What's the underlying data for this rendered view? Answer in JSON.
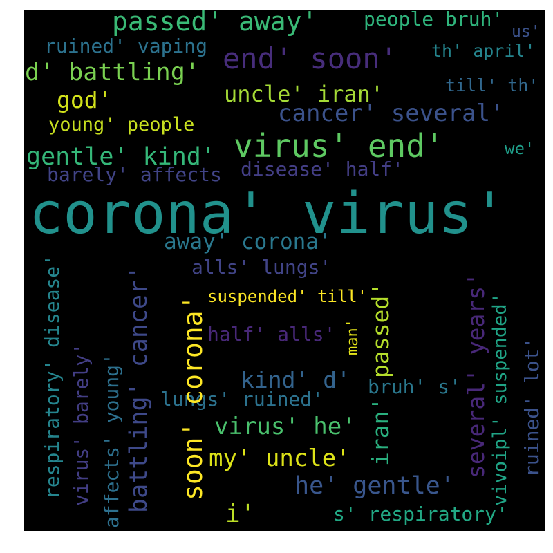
{
  "words": [
    {
      "text": "corona' virus'",
      "color": "#21918c"
    },
    {
      "text": "virus' end'",
      "color": "#5ec962"
    },
    {
      "text": "end' soon'",
      "color": "#472d7b"
    },
    {
      "text": "passed' away'",
      "color": "#3aba76"
    },
    {
      "text": "d' battling'",
      "color": "#7ad151"
    },
    {
      "text": "uncle' iran'",
      "color": "#a5db36"
    },
    {
      "text": "cancer' several'",
      "color": "#3b528b"
    },
    {
      "text": "gentle' kind'",
      "color": "#35b779"
    },
    {
      "text": "god'",
      "color": "#d2e21b"
    },
    {
      "text": "young' people",
      "color": "#c8e020"
    },
    {
      "text": "people bruh'",
      "color": "#2fb47c"
    },
    {
      "text": "ruined' vaping",
      "color": "#2c728e"
    },
    {
      "text": "th' april'",
      "color": "#25858e"
    },
    {
      "text": "us'",
      "color": "#3b528b"
    },
    {
      "text": "till' th'",
      "color": "#31688e"
    },
    {
      "text": "we'",
      "color": "#1f9e89"
    },
    {
      "text": "barely' affects",
      "color": "#414487"
    },
    {
      "text": "disease' half'",
      "color": "#433e85"
    },
    {
      "text": "away' corona'",
      "color": "#2a788e"
    },
    {
      "text": "alls' lungs'",
      "color": "#414487"
    },
    {
      "text": "suspended' till'",
      "color": "#fde725"
    },
    {
      "text": "half' alls'",
      "color": "#482878"
    },
    {
      "text": "kind' d'",
      "color": "#33638d"
    },
    {
      "text": "bruh' s'",
      "color": "#2a788e"
    },
    {
      "text": "lungs' ruined'",
      "color": "#2c728e"
    },
    {
      "text": "virus' he'",
      "color": "#4ac16d"
    },
    {
      "text": "my' uncle'",
      "color": "#dde318"
    },
    {
      "text": "he' gentle'",
      "color": "#39568c"
    },
    {
      "text": "i'",
      "color": "#bddf26"
    },
    {
      "text": "s' respiratory'",
      "color": "#22a884"
    },
    {
      "text": "soon' corona'",
      "color": "#fde725"
    },
    {
      "text": "battling' cancer'",
      "color": "#3e4989"
    },
    {
      "text": "passed'",
      "color": "#b5de2b"
    },
    {
      "text": "iran'",
      "color": "#2ab07f"
    },
    {
      "text": "several' years'",
      "color": "#482878"
    },
    {
      "text": "vivoipl' suspended'",
      "color": "#20a486"
    },
    {
      "text": "ruined' lot'",
      "color": "#3b528b"
    },
    {
      "text": "man'",
      "color": "#e5e419"
    },
    {
      "text": "affects' young'",
      "color": "#2d708e"
    },
    {
      "text": "virus' barely'",
      "color": "#433e85"
    },
    {
      "text": "respiratory' disease'",
      "color": "#25858e"
    }
  ]
}
